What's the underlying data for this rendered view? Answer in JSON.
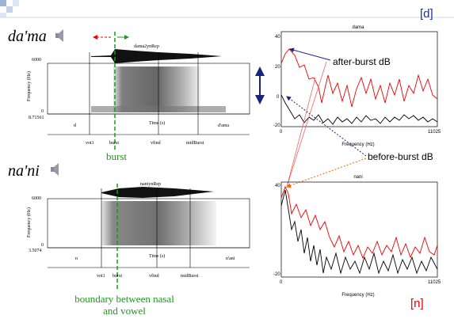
{
  "header": {
    "tag_top": "[d]",
    "tag_bottom": "[n]"
  },
  "top": {
    "word": "da'ma",
    "spectrogram": {
      "title": "dama2ynRep",
      "freq_top": "6000",
      "freq_bottom": "0",
      "axis_label": "Frequency (Hz)",
      "time_start": "8.71561",
      "time_label": "Time (s)",
      "seg_left": "d",
      "seg_right": "d'ama",
      "marks": [
        "vot1",
        "burst",
        "vfind",
        "midBurst"
      ]
    },
    "caption": "burst"
  },
  "bottom": {
    "word": "na'ni",
    "spectrogram": {
      "title": "naniynRep",
      "freq_top": "6000",
      "freq_bottom": "0",
      "axis_label": "Frequency (Hz)",
      "time_start": "3.5074",
      "time_label": "Time (s)",
      "seg_left": "n",
      "seg_right": "n'ani",
      "marks": [
        "vot1",
        "burst",
        "vfind",
        "midBurst"
      ]
    },
    "caption": [
      "boundary between nasal",
      "and vowel"
    ]
  },
  "spectrum_top": {
    "title": "dama",
    "yticks": [
      "40",
      "20",
      "0",
      "-20"
    ],
    "x_start": "0",
    "x_end": "11025",
    "x_label": "Frequency (Hz)"
  },
  "spectrum_bottom": {
    "title": "nani",
    "yticks": [
      "40",
      "-20"
    ],
    "x_start": "0",
    "x_end": "11025",
    "x_label": "Frequency (Hz)"
  },
  "annotations": {
    "after": "after-burst dB",
    "before": "before-burst dB"
  }
}
